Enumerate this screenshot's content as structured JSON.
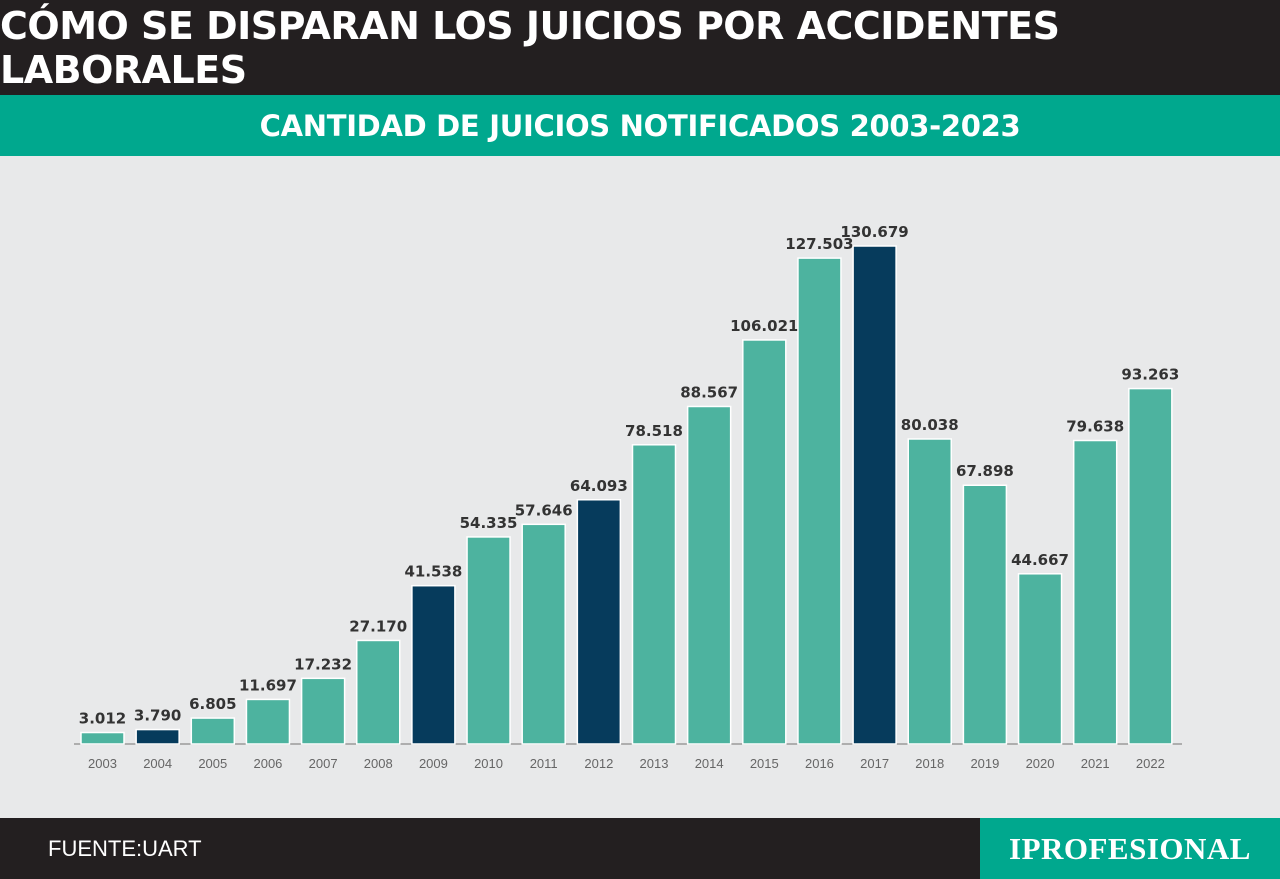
{
  "header": {
    "title": "CÓMO SE DISPARAN LOS JUICIOS POR ACCIDENTES LABORALES",
    "subtitle": "CANTIDAD DE JUICIOS NOTIFICADOS 2003-2023"
  },
  "footer": {
    "source": "FUENTE:UART",
    "brand": "IPROFESIONAL"
  },
  "colors": {
    "bar": "#4db39f",
    "bar_highlight": "#063b5c",
    "label": "#333333",
    "tick": "#666666"
  },
  "chart_data": {
    "type": "bar",
    "title": "CANTIDAD DE JUICIOS NOTIFICADOS 2003-2023",
    "xlabel": "",
    "ylabel": "",
    "ylim": [
      0,
      130679
    ],
    "grid": false,
    "categories": [
      "2003",
      "2004",
      "2005",
      "2006",
      "2007",
      "2008",
      "2009",
      "2010",
      "2011",
      "2012",
      "2013",
      "2014",
      "2015",
      "2016",
      "2017",
      "2018",
      "2019",
      "2020",
      "2021",
      "2022"
    ],
    "values": [
      3012,
      3790,
      6805,
      11697,
      17232,
      27170,
      41538,
      54335,
      57646,
      64093,
      78518,
      88567,
      106021,
      127503,
      130679,
      80038,
      67898,
      44667,
      79638,
      93263
    ],
    "value_labels": [
      "3.012",
      "3.790",
      "6.805",
      "11.697",
      "17.232",
      "27.170",
      "41.538",
      "54.335",
      "57.646",
      "64.093",
      "78.518",
      "88.567",
      "106.021",
      "127.503",
      "130.679",
      "80.038",
      "67.898",
      "44.667",
      "79.638",
      "93.263"
    ],
    "highlighted": [
      "2004",
      "2009",
      "2012",
      "2017"
    ]
  }
}
